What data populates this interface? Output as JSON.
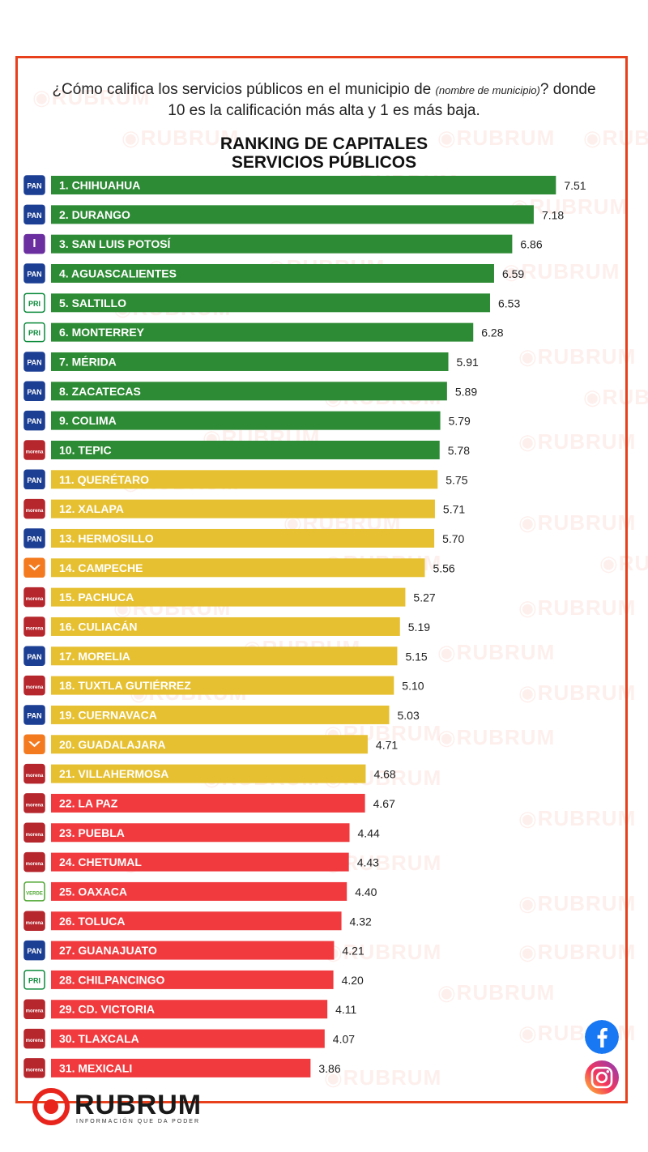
{
  "question": {
    "part1": "¿Cómo califica los servicios públicos en el municipio de",
    "italic": "(nombre de municipio)",
    "part2": "? donde 10 es la calificación más alta y 1 es más baja."
  },
  "watermark_text": "RUBRUM",
  "brand": {
    "name": "RUBRUM",
    "tagline": "INFORMACIÓN QUE DA PODER"
  },
  "colors": {
    "green": "#2e8b35",
    "yellow": "#e6c030",
    "red": "#f03a3e",
    "frame": "#e8401c",
    "PAN": "#1c3f94",
    "morena": "#b5262d",
    "PRI": "#0a8a3a",
    "MC": "#f47a20",
    "PVEM": "#4ea630",
    "IND": "#6b2fa0"
  },
  "parties": {
    "PAN": "PAN",
    "morena": "morena",
    "PRI": "PRI",
    "MC": "",
    "PVEM": "VERDE",
    "IND": "I"
  },
  "chart_data": {
    "type": "bar",
    "orientation": "horizontal",
    "title": "RANKING DE CAPITALES\nSERVICIOS PÚBLICOS",
    "title_lines": [
      "RANKING DE CAPITALES",
      "SERVICIOS PÚBLICOS"
    ],
    "xlim": [
      0,
      10
    ],
    "categories": [
      "1. CHIHUAHUA",
      "2. DURANGO",
      "3. SAN LUIS POTOSÍ",
      "4. AGUASCALIENTES",
      "5. SALTILLO",
      "6. MONTERREY",
      "7. MÉRIDA",
      "8. ZACATECAS",
      "9. COLIMA",
      "10. TEPIC",
      "11. QUERÉTARO",
      "12. XALAPA",
      "13. HERMOSILLO",
      "14. CAMPECHE",
      "15. PACHUCA",
      "16. CULIACÁN",
      "17. MORELIA",
      "18. TUXTLA GUTIÉRREZ",
      "19. CUERNAVACA",
      "20. GUADALAJARA",
      "21. VILLAHERMOSA",
      "22. LA PAZ",
      "23. PUEBLA",
      "24. CHETUMAL",
      "25. OAXACA",
      "26. TOLUCA",
      "27. GUANAJUATO",
      "28. CHILPANCINGO",
      "29. CD. VICTORIA",
      "30. TLAXCALA",
      "31. MEXICALI"
    ],
    "values": [
      7.51,
      7.18,
      6.86,
      6.59,
      6.53,
      6.28,
      5.91,
      5.89,
      5.79,
      5.78,
      5.75,
      5.71,
      5.7,
      5.56,
      5.27,
      5.19,
      5.15,
      5.1,
      5.03,
      4.71,
      4.68,
      4.67,
      4.44,
      4.43,
      4.4,
      4.32,
      4.21,
      4.2,
      4.11,
      4.07,
      3.86
    ],
    "value_labels": [
      "7.51",
      "7.18",
      "6.86",
      "6.59",
      "6.53",
      "6.28",
      "5.91",
      "5.89",
      "5.79",
      "5.78",
      "5.75",
      "5.71",
      "5.70",
      "5.56",
      "5.27",
      "5.19",
      "5.15",
      "5.10",
      "5.03",
      "4.71",
      "4.68",
      "4.67",
      "4.44",
      "4.43",
      "4.40",
      "4.32",
      "4.21",
      "4.20",
      "4.11",
      "4.07",
      "3.86"
    ],
    "party": [
      "PAN",
      "PAN",
      "IND",
      "PAN",
      "PRI",
      "PRI",
      "PAN",
      "PAN",
      "PAN",
      "morena",
      "PAN",
      "morena",
      "PAN",
      "MC",
      "morena",
      "morena",
      "PAN",
      "morena",
      "PAN",
      "MC",
      "morena",
      "morena",
      "morena",
      "morena",
      "PVEM",
      "morena",
      "PAN",
      "PRI",
      "morena",
      "morena",
      "morena"
    ],
    "color_group": [
      "green",
      "green",
      "green",
      "green",
      "green",
      "green",
      "green",
      "green",
      "green",
      "green",
      "yellow",
      "yellow",
      "yellow",
      "yellow",
      "yellow",
      "yellow",
      "yellow",
      "yellow",
      "yellow",
      "yellow",
      "yellow",
      "red",
      "red",
      "red",
      "red",
      "red",
      "red",
      "red",
      "red",
      "red",
      "red"
    ]
  }
}
